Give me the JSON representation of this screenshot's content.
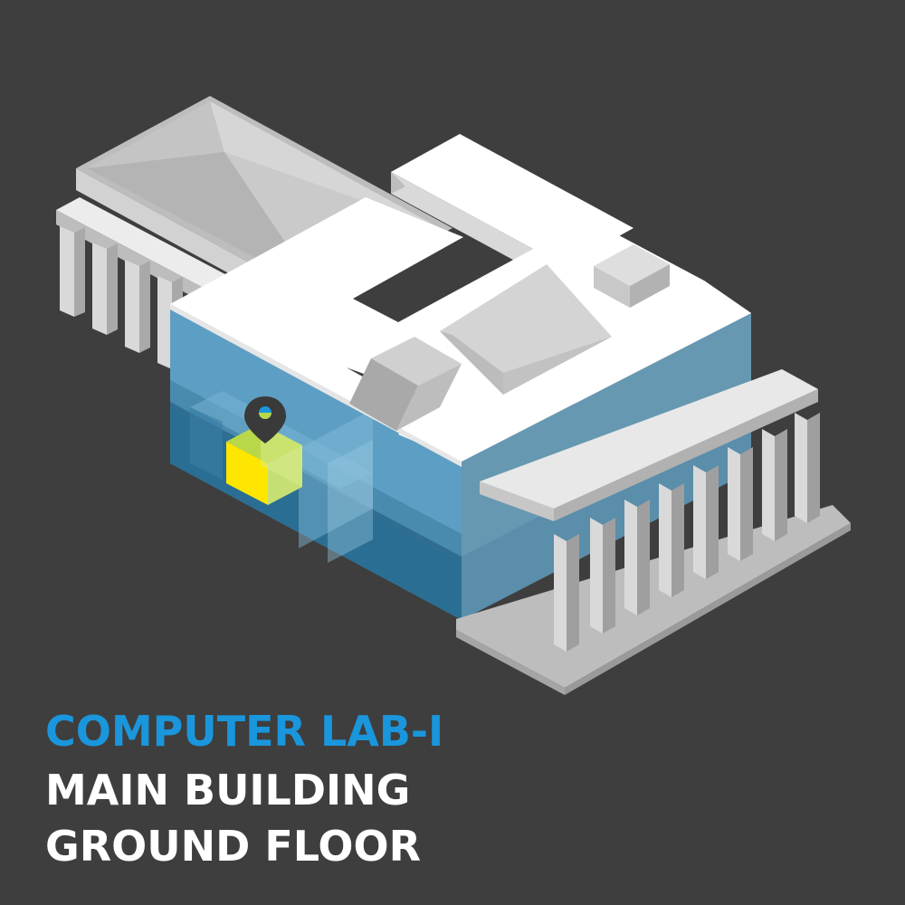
{
  "location": {
    "room": "COMPUTER LAB-I",
    "building": "MAIN BUILDING",
    "floor": "GROUND FLOOR"
  },
  "colors": {
    "background": "#3e3e3e",
    "room_text": "#1a96dc",
    "caption_text": "#ffffff",
    "highlight_room": "#ffe600",
    "glass_floor": "#3f8fb8",
    "roof": "#ffffff",
    "structure": "#c8c8c8",
    "marker": "#3a3a3a"
  },
  "icons": {
    "marker": "location-pin-icon"
  }
}
